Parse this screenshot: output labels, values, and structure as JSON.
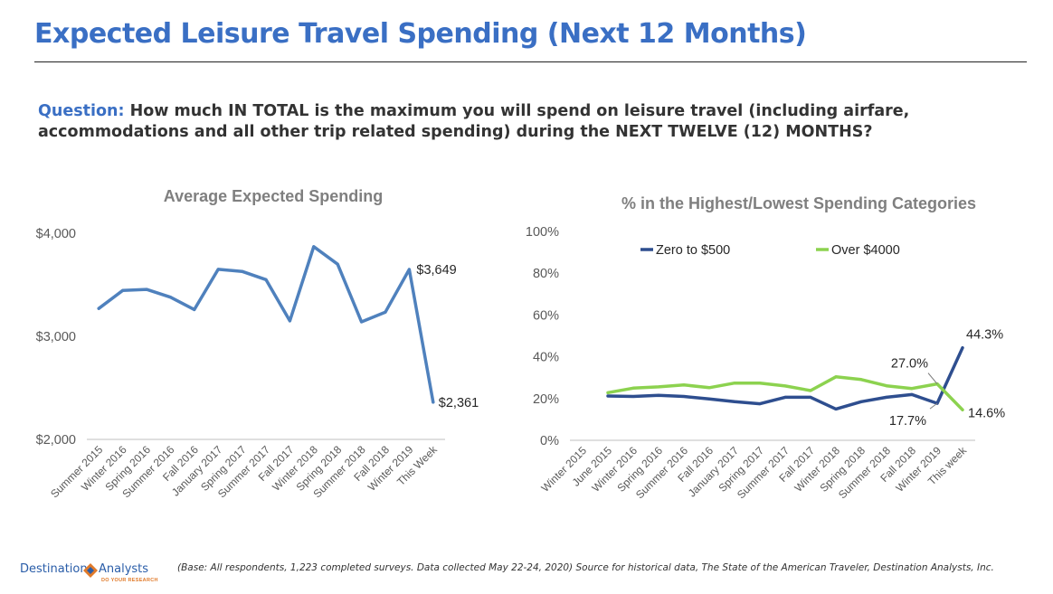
{
  "page": {
    "title": "Expected Leisure Travel Spending (Next 12 Months)",
    "question_label": "Question:",
    "question_text": "How much IN TOTAL is the maximum you will spend on leisure travel (including airfare, accommodations and all other trip related spending) during the NEXT TWELVE (12) MONTHS?",
    "footer": "(Base: All respondents, 1,223 completed surveys. Data collected May 22-24, 2020) Source for historical data, The State of the American Traveler, Destination Analysts, Inc.",
    "logo_left": "Destination",
    "logo_right": "Analysts",
    "logo_tagline": "DO YOUR RESEARCH",
    "colors": {
      "title": "#3a6fc4",
      "logo_blue": "#2a5da8",
      "logo_orange": "#e07a2a"
    }
  },
  "chart_data": [
    {
      "type": "line",
      "title": "Average Expected Spending",
      "x": [
        "Summer 2015",
        "Winter 2016",
        "Spring 2016",
        "Summer 2016",
        "Fall 2016",
        "January 2017",
        "Spring 2017",
        "Summer 2017",
        "Fall 2017",
        "Winter 2018",
        "Spring 2018",
        "Summer 2018",
        "Fall 2018",
        "Winter 2019",
        "This Week"
      ],
      "series": [
        {
          "name": "",
          "color": "#4f81bd",
          "values": [
            3270,
            3445,
            3455,
            3380,
            3260,
            3650,
            3630,
            3550,
            3150,
            3870,
            3700,
            3140,
            3235,
            3649,
            2361
          ]
        }
      ],
      "ylim": [
        2000,
        4000
      ],
      "yticks": [
        2000,
        3000,
        4000
      ],
      "ytick_labels": [
        "$2,000",
        "$3,000",
        "$4,000"
      ],
      "data_labels": [
        {
          "index": 13,
          "text": "$3,649"
        },
        {
          "index": 14,
          "text": "$2,361"
        }
      ],
      "grid": false,
      "legend": "none"
    },
    {
      "type": "line",
      "title": "% in the Highest/Lowest Spending Categories",
      "x": [
        "Winter 2015",
        "June 2015",
        "Winter 2016",
        "Spring 2016",
        "Summer 2016",
        "Fall 2016",
        "January 2017",
        "Spring 2017",
        "Summer 2017",
        "Fall 2017",
        "Winter 2018",
        "Spring 2018",
        "Summer 2018",
        "Fall 2018",
        "Winter 2019",
        "This week"
      ],
      "series": [
        {
          "name": "Zero to $500",
          "color": "#2e4e8f",
          "values": [
            null,
            21.2,
            21.0,
            21.5,
            21.0,
            19.8,
            18.5,
            17.5,
            20.6,
            20.6,
            15.0,
            18.5,
            20.6,
            21.9,
            17.7,
            44.3
          ]
        },
        {
          "name": "Over $4000",
          "color": "#8cd24f",
          "values": [
            null,
            22.8,
            25.0,
            25.6,
            26.5,
            25.2,
            27.4,
            27.4,
            26.0,
            23.8,
            30.4,
            29.1,
            26.1,
            24.8,
            27.0,
            14.6
          ]
        }
      ],
      "ylim": [
        0,
        100
      ],
      "yticks": [
        0,
        20,
        40,
        60,
        80,
        100
      ],
      "ytick_labels": [
        "0%",
        "20%",
        "40%",
        "60%",
        "80%",
        "100%"
      ],
      "data_labels": [
        {
          "series": 0,
          "index": 15,
          "text": "44.3%"
        },
        {
          "series": 0,
          "index": 14,
          "text": "17.7%"
        },
        {
          "series": 1,
          "index": 14,
          "text": "27.0%"
        },
        {
          "series": 1,
          "index": 15,
          "text": "14.6%"
        }
      ],
      "grid": false,
      "legend": "top"
    }
  ]
}
